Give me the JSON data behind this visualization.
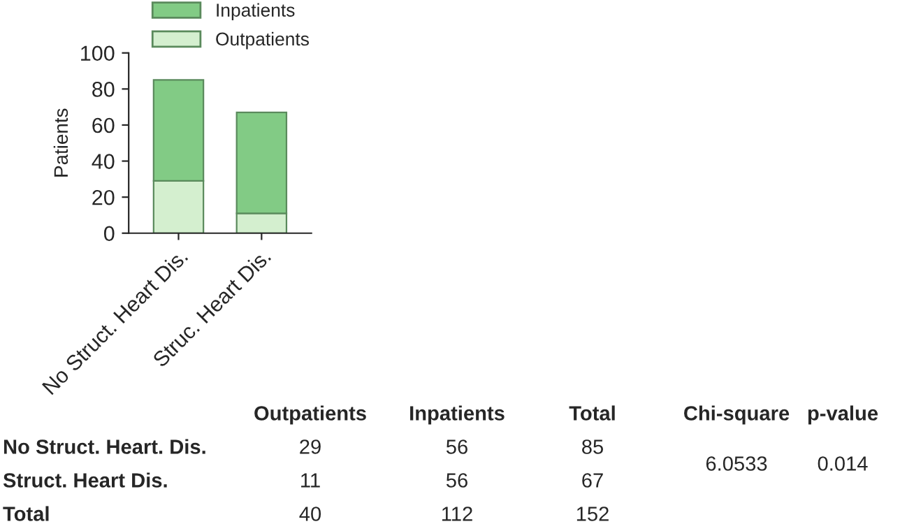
{
  "chart_data": {
    "type": "bar",
    "ylabel": "Patients",
    "categories": [
      "No Struct. Heart Dis.",
      "Struc. Heart Dis."
    ],
    "series": [
      {
        "name": "Outpatients",
        "color": "#d4efcf",
        "values": [
          29,
          11
        ]
      },
      {
        "name": "Inpatients",
        "color": "#82cb85",
        "values": [
          56,
          56
        ]
      }
    ],
    "stacked": true,
    "ylim": [
      0,
      100
    ],
    "yticks": [
      0,
      20,
      40,
      60,
      80,
      100
    ],
    "grid": false,
    "legend": "top",
    "annotations": [
      "Outpatients",
      "Inpatients",
      "Total",
      "Chi-square",
      "p-value",
      "No Struct. Heart. Dis.",
      "Struct. Heart Dis.",
      "Total",
      "29",
      "56",
      "85",
      "11",
      "56",
      "67",
      "40",
      "112",
      "152",
      "6.0533",
      "0.014"
    ]
  }
}
